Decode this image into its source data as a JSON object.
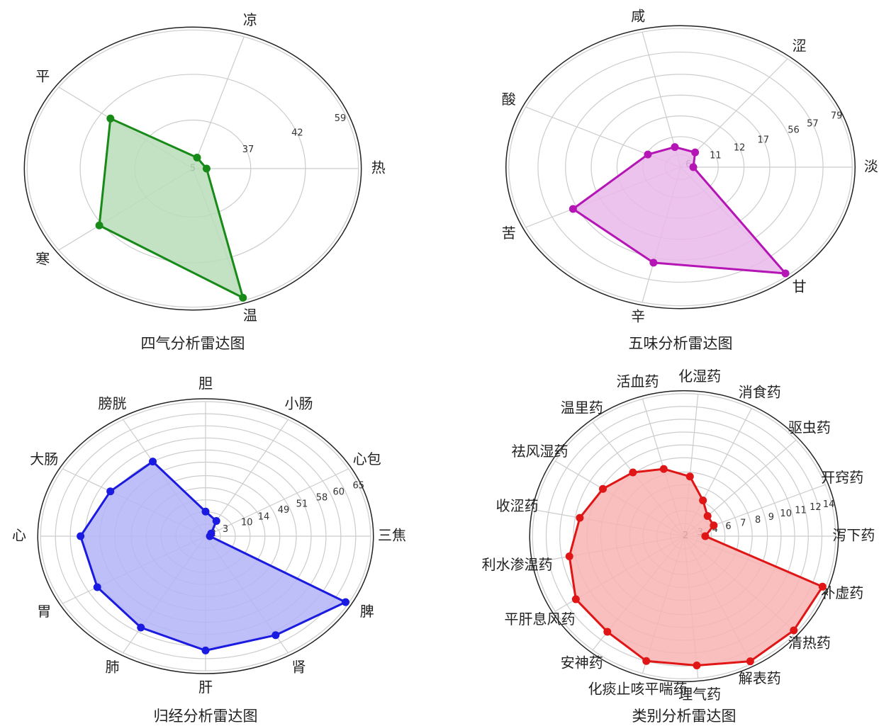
{
  "chart_data": [
    {
      "type": "radar",
      "title": "四气分析雷达图",
      "color": "#178a17",
      "fill": "#b9dcb9",
      "categories": [
        "热",
        "凉",
        "平",
        "寒",
        "温"
      ],
      "values": [
        5,
        5,
        37,
        42,
        59
      ],
      "ticks": [
        "5",
        "37",
        "42",
        "59"
      ]
    },
    {
      "type": "radar",
      "title": "五味分析雷达图",
      "color": "#b415b4",
      "fill": "#e9b8ea",
      "categories": [
        "淡",
        "涩",
        "咸",
        "酸",
        "苦",
        "辛",
        "甘"
      ],
      "values": [
        6,
        11,
        12,
        17,
        56,
        57,
        79
      ],
      "ticks": [
        "6",
        "11",
        "12",
        "17",
        "56",
        "57",
        "79"
      ]
    },
    {
      "type": "radar",
      "title": "归经分析雷达图",
      "color": "#1a1ae0",
      "fill": "#b3b3f7",
      "categories": [
        "三焦",
        "心包",
        "小肠",
        "胆",
        "膀胱",
        "大肠",
        "心",
        "胃",
        "肺",
        "肝",
        "肾",
        "脾"
      ],
      "values": [
        2,
        3,
        10,
        14,
        49,
        51,
        58,
        58,
        60,
        65,
        65,
        75
      ],
      "ticks": [
        "2",
        "3",
        "10",
        "14",
        "49",
        "51",
        "58",
        "60",
        "65"
      ]
    },
    {
      "type": "radar",
      "title": "类别分析雷达图",
      "color": "#e01515",
      "fill": "#f8b3b3",
      "categories": [
        "泻下药",
        "开窍药",
        "驱虫药",
        "消食药",
        "化湿药",
        "活血药",
        "温里药",
        "祛风湿药",
        "收涩药",
        "利水渗温药",
        "平肝息风药",
        "安神药",
        "化痰止咳平喘药",
        "理气药",
        "解表药",
        "清热药",
        "补虚药"
      ],
      "values": [
        2,
        3,
        3,
        4,
        6,
        7,
        8,
        9,
        10,
        11,
        12,
        12,
        13,
        13,
        14,
        14,
        14
      ],
      "ticks": [
        "2",
        "3",
        "4",
        "6",
        "7",
        "8",
        "9",
        "10",
        "11",
        "12",
        "14"
      ]
    }
  ]
}
